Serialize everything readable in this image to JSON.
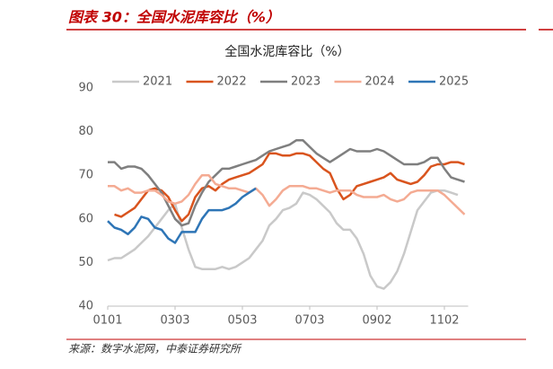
{
  "header": "图表 30：全国水泥库容比（%）",
  "source": "来源：数字水泥网，中泰证券研究所",
  "chart_data": {
    "type": "line",
    "title": "全国水泥库容比（%）",
    "categories": [
      "0101",
      null,
      null,
      null,
      null,
      null,
      null,
      null,
      null,
      null,
      "0303",
      null,
      null,
      null,
      null,
      null,
      null,
      null,
      null,
      null,
      "0503",
      null,
      null,
      null,
      null,
      null,
      null,
      null,
      null,
      null,
      "0703",
      null,
      null,
      null,
      null,
      null,
      null,
      null,
      null,
      null,
      "0902",
      null,
      null,
      null,
      null,
      null,
      null,
      null,
      null,
      null,
      "1102",
      null,
      null,
      null
    ],
    "ylim": [
      40,
      90
    ],
    "yticks": [
      40,
      50,
      60,
      70,
      80,
      90
    ],
    "grid": false,
    "legend": "top",
    "series": [
      {
        "name": "2021",
        "color": "#c9c9c9",
        "values": [
          50.5,
          51,
          51,
          52,
          53,
          54.5,
          56,
          58,
          60,
          62,
          63.5,
          58,
          53,
          49,
          48.5,
          48.5,
          48.5,
          49,
          48.5,
          49,
          50,
          51,
          53,
          55,
          58.5,
          60,
          62,
          62.5,
          63.5,
          66,
          65.5,
          64.5,
          63,
          61.5,
          59,
          57.5,
          57.5,
          55.5,
          52,
          47,
          44.5,
          44,
          45.5,
          48,
          52,
          57,
          62,
          64,
          66,
          66.5,
          66.5,
          66,
          65.5,
          null
        ]
      },
      {
        "name": "2022",
        "color": "#d9541e",
        "values": [
          null,
          61,
          60.5,
          61.5,
          62.5,
          64.5,
          66.5,
          67,
          66.5,
          65,
          62,
          59.5,
          61,
          65,
          67,
          67.5,
          66.5,
          68,
          69,
          69.5,
          70,
          70.5,
          71.5,
          72.5,
          75,
          75,
          74.5,
          74.5,
          75,
          75,
          74.5,
          73,
          71.5,
          70.5,
          67,
          64.5,
          65.5,
          67.5,
          68,
          68.5,
          69,
          69.5,
          70.5,
          69,
          68.5,
          68,
          68.5,
          70,
          72,
          72.5,
          72.5,
          73,
          73,
          72.5
        ]
      },
      {
        "name": "2023",
        "color": "#7f7f7f",
        "values": [
          73,
          73,
          71.5,
          72,
          72,
          71.5,
          70,
          68,
          66,
          63,
          60,
          58.5,
          59,
          63,
          66,
          68.5,
          70,
          71.5,
          71.5,
          72,
          72.5,
          73,
          73.5,
          74.5,
          75.5,
          76,
          76.5,
          77,
          78,
          78,
          76.5,
          75,
          74,
          73,
          74,
          75,
          76,
          75.5,
          75.5,
          75.5,
          76,
          75.5,
          74.5,
          73.5,
          72.5,
          72.5,
          72.5,
          73,
          74,
          74,
          71.5,
          69.5,
          69,
          68.5
        ]
      },
      {
        "name": "2024",
        "color": "#f4ab93",
        "values": [
          67.5,
          67.5,
          66.5,
          67,
          66,
          66,
          66.5,
          66.5,
          65.5,
          64,
          63.5,
          64,
          65.5,
          68,
          70,
          70,
          68,
          67.5,
          67,
          67,
          66.5,
          66,
          67,
          65.5,
          63,
          64.5,
          66.5,
          67.5,
          67.5,
          67.5,
          67,
          67,
          66.5,
          66,
          66.5,
          66.5,
          66.5,
          65.5,
          65,
          65,
          65,
          65.5,
          64.5,
          64,
          64.5,
          66,
          66.5,
          66.5,
          66.5,
          66.5,
          65.5,
          64,
          62.5,
          61
        ]
      },
      {
        "name": "2025",
        "color": "#2e75b6",
        "values": [
          59.5,
          58,
          57.5,
          56.5,
          58,
          60.5,
          60,
          58,
          57.5,
          55.5,
          54.5,
          57,
          57,
          57,
          60,
          62,
          62,
          62,
          62.5,
          63.5,
          65,
          66,
          67,
          null,
          null,
          null,
          null,
          null,
          null,
          null,
          null,
          null,
          null,
          null,
          null,
          null,
          null,
          null,
          null,
          null,
          null,
          null,
          null,
          null,
          null,
          null,
          null,
          null,
          null,
          null,
          null,
          null,
          null,
          null
        ]
      }
    ]
  }
}
